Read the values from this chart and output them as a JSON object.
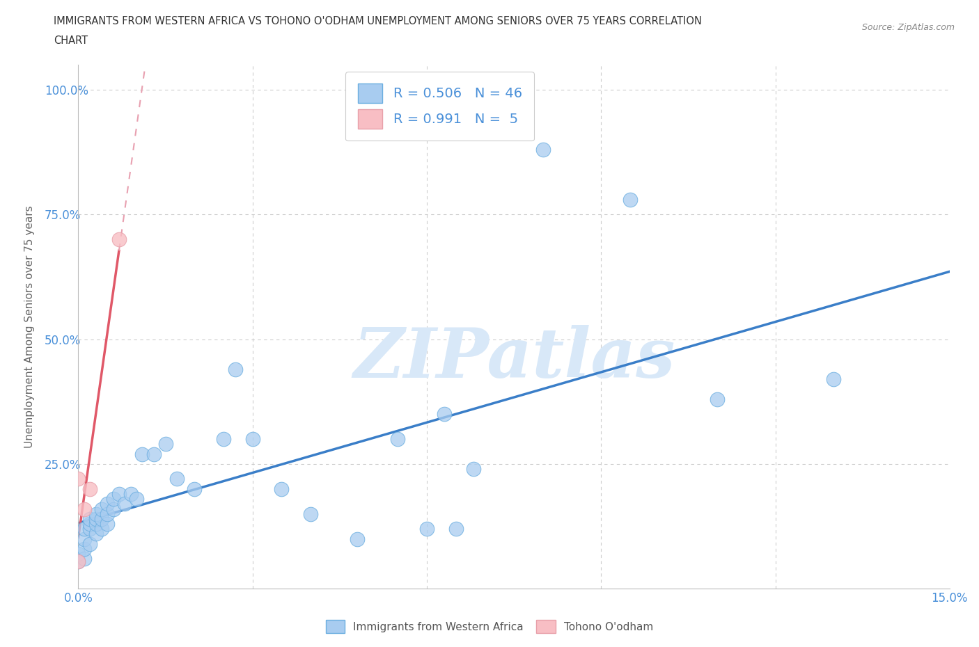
{
  "title_line1": "IMMIGRANTS FROM WESTERN AFRICA VS TOHONO O'ODHAM UNEMPLOYMENT AMONG SENIORS OVER 75 YEARS CORRELATION",
  "title_line2": "CHART",
  "source": "Source: ZipAtlas.com",
  "ylabel": "Unemployment Among Seniors over 75 years",
  "xlim": [
    0.0,
    0.15
  ],
  "ylim": [
    0.0,
    1.05
  ],
  "xticks": [
    0.0,
    0.03,
    0.06,
    0.09,
    0.12,
    0.15
  ],
  "xticklabels": [
    "0.0%",
    "",
    "",
    "",
    "",
    "15.0%"
  ],
  "yticks": [
    0.0,
    0.25,
    0.5,
    0.75,
    1.0
  ],
  "yticklabels": [
    "",
    "25.0%",
    "50.0%",
    "75.0%",
    "100.0%"
  ],
  "blue_fill": "#A8CCF0",
  "blue_edge": "#6BAEE0",
  "pink_fill": "#F8BEC4",
  "pink_edge": "#E8A0AA",
  "blue_line_color": "#3A7EC8",
  "pink_line_color": "#E05868",
  "pink_dash_color": "#E8A0B0",
  "R_blue": 0.506,
  "N_blue": 46,
  "R_pink": 0.991,
  "N_pink": 5,
  "watermark": "ZIPatlas",
  "watermark_color": "#D8E8F8",
  "grid_color": "#CCCCCC",
  "background_color": "#FFFFFF",
  "legend_label_blue": "Immigrants from Western Africa",
  "legend_label_pink": "Tohono O'odham",
  "blue_scatter_x": [
    0.0,
    0.0,
    0.001,
    0.001,
    0.001,
    0.001,
    0.002,
    0.002,
    0.002,
    0.002,
    0.003,
    0.003,
    0.003,
    0.003,
    0.004,
    0.004,
    0.004,
    0.005,
    0.005,
    0.005,
    0.006,
    0.006,
    0.007,
    0.008,
    0.009,
    0.01,
    0.011,
    0.013,
    0.015,
    0.017,
    0.02,
    0.025,
    0.027,
    0.03,
    0.035,
    0.04,
    0.048,
    0.055,
    0.06,
    0.063,
    0.065,
    0.068,
    0.08,
    0.095,
    0.11,
    0.13
  ],
  "blue_scatter_y": [
    0.055,
    0.07,
    0.06,
    0.08,
    0.1,
    0.12,
    0.09,
    0.12,
    0.13,
    0.14,
    0.11,
    0.13,
    0.14,
    0.15,
    0.12,
    0.14,
    0.16,
    0.13,
    0.15,
    0.17,
    0.16,
    0.18,
    0.19,
    0.17,
    0.19,
    0.18,
    0.27,
    0.27,
    0.29,
    0.22,
    0.2,
    0.3,
    0.44,
    0.3,
    0.2,
    0.15,
    0.1,
    0.3,
    0.12,
    0.35,
    0.12,
    0.24,
    0.88,
    0.78,
    0.38,
    0.42
  ],
  "pink_scatter_x": [
    0.0,
    0.0,
    0.001,
    0.002,
    0.007
  ],
  "pink_scatter_y": [
    0.055,
    0.22,
    0.16,
    0.2,
    0.7
  ]
}
